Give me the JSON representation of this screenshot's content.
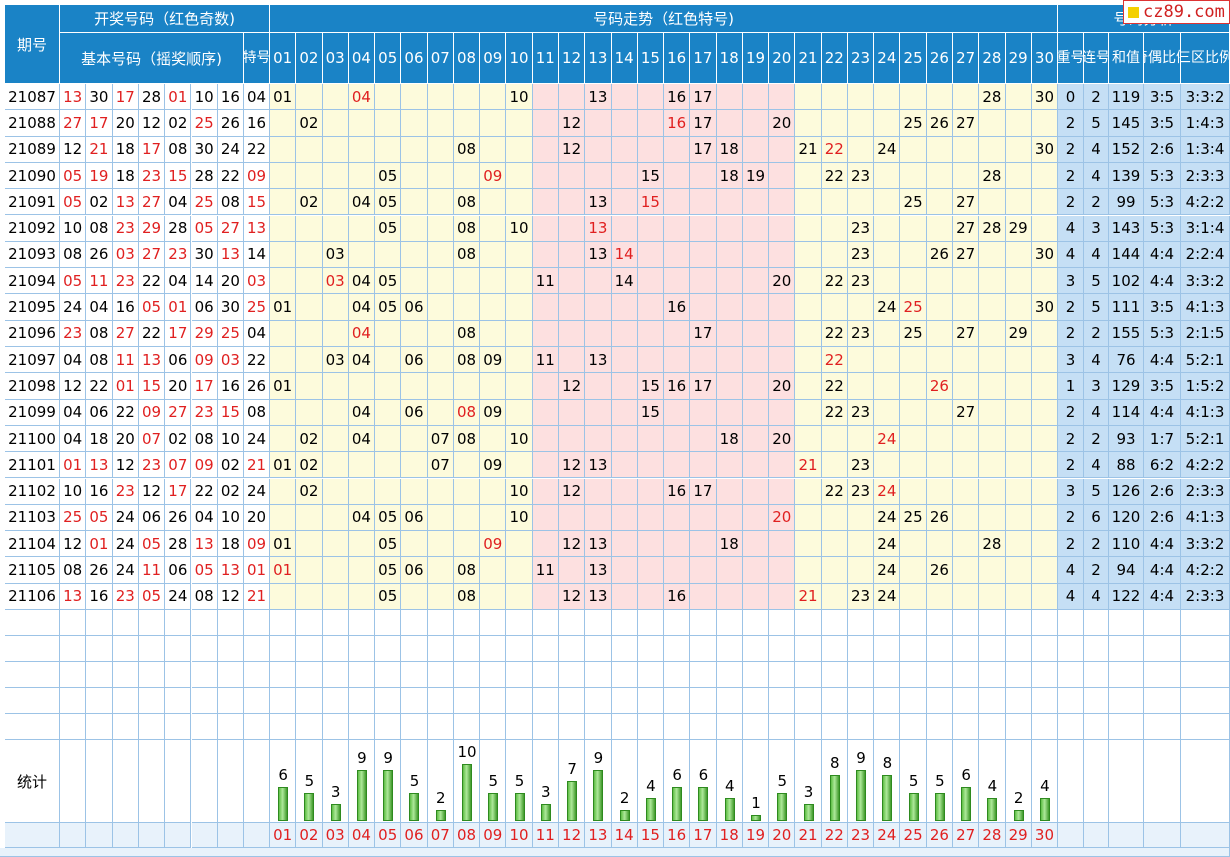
{
  "header": {
    "period_label": "期号",
    "draw_group": "开奖号码（红色奇数)",
    "basic_label": "基本号码（摇奖顺序)",
    "special_label": "特号",
    "trend_group": "号码走势（红色特号)",
    "analysis_group": "号码分析",
    "repeat_label": "重号",
    "consec_label": "连号",
    "sum_label": "和值",
    "oddeven_label": "奇偶比例",
    "zone_label": "三区比例"
  },
  "logo": {
    "text": "cz89.com"
  },
  "number_labels": [
    "01",
    "02",
    "03",
    "04",
    "05",
    "06",
    "07",
    "08",
    "09",
    "10",
    "11",
    "12",
    "13",
    "14",
    "15",
    "16",
    "17",
    "18",
    "19",
    "20",
    "21",
    "22",
    "23",
    "24",
    "25",
    "26",
    "27",
    "28",
    "29",
    "30"
  ],
  "rows": [
    {
      "period": "21087",
      "basic": [
        "13",
        "30",
        "17",
        "28",
        "01",
        "10",
        "16"
      ],
      "special": "04",
      "nums": [
        "01",
        "04",
        "10",
        "13",
        "16",
        "17",
        "28",
        "30"
      ],
      "repeat": "0",
      "consec": "2",
      "sum": "119",
      "oddeven": "3:5",
      "zones": "3:3:2"
    },
    {
      "period": "21088",
      "basic": [
        "27",
        "17",
        "20",
        "12",
        "02",
        "25",
        "26"
      ],
      "special": "16",
      "nums": [
        "02",
        "12",
        "16",
        "17",
        "20",
        "25",
        "26",
        "27"
      ],
      "repeat": "2",
      "consec": "5",
      "sum": "145",
      "oddeven": "3:5",
      "zones": "1:4:3"
    },
    {
      "period": "21089",
      "basic": [
        "12",
        "21",
        "18",
        "17",
        "08",
        "30",
        "24"
      ],
      "special": "22",
      "nums": [
        "08",
        "12",
        "17",
        "18",
        "21",
        "22",
        "24",
        "30"
      ],
      "repeat": "2",
      "consec": "4",
      "sum": "152",
      "oddeven": "2:6",
      "zones": "1:3:4"
    },
    {
      "period": "21090",
      "basic": [
        "05",
        "19",
        "18",
        "23",
        "15",
        "28",
        "22"
      ],
      "special": "09",
      "nums": [
        "05",
        "09",
        "15",
        "18",
        "19",
        "22",
        "23",
        "28"
      ],
      "repeat": "2",
      "consec": "4",
      "sum": "139",
      "oddeven": "5:3",
      "zones": "2:3:3"
    },
    {
      "period": "21091",
      "basic": [
        "05",
        "02",
        "13",
        "27",
        "04",
        "25",
        "08"
      ],
      "special": "15",
      "nums": [
        "02",
        "04",
        "05",
        "08",
        "13",
        "15",
        "25",
        "27"
      ],
      "repeat": "2",
      "consec": "2",
      "sum": "99",
      "oddeven": "5:3",
      "zones": "4:2:2"
    },
    {
      "period": "21092",
      "basic": [
        "10",
        "08",
        "23",
        "29",
        "28",
        "05",
        "27"
      ],
      "special": "13",
      "nums": [
        "05",
        "08",
        "10",
        "13",
        "23",
        "27",
        "28",
        "29"
      ],
      "repeat": "4",
      "consec": "3",
      "sum": "143",
      "oddeven": "5:3",
      "zones": "3:1:4"
    },
    {
      "period": "21093",
      "basic": [
        "08",
        "26",
        "03",
        "27",
        "23",
        "30",
        "13"
      ],
      "special": "14",
      "nums": [
        "03",
        "08",
        "13",
        "14",
        "23",
        "26",
        "27",
        "30"
      ],
      "repeat": "4",
      "consec": "4",
      "sum": "144",
      "oddeven": "4:4",
      "zones": "2:2:4"
    },
    {
      "period": "21094",
      "basic": [
        "05",
        "11",
        "23",
        "22",
        "04",
        "14",
        "20"
      ],
      "special": "03",
      "nums": [
        "03",
        "04",
        "05",
        "11",
        "14",
        "20",
        "22",
        "23"
      ],
      "repeat": "3",
      "consec": "5",
      "sum": "102",
      "oddeven": "4:4",
      "zones": "3:3:2"
    },
    {
      "period": "21095",
      "basic": [
        "24",
        "04",
        "16",
        "05",
        "01",
        "06",
        "30"
      ],
      "special": "25",
      "nums": [
        "01",
        "04",
        "05",
        "06",
        "16",
        "24",
        "25",
        "30"
      ],
      "repeat": "2",
      "consec": "5",
      "sum": "111",
      "oddeven": "3:5",
      "zones": "4:1:3"
    },
    {
      "period": "21096",
      "basic": [
        "23",
        "08",
        "27",
        "22",
        "17",
        "29",
        "25"
      ],
      "special": "04",
      "nums": [
        "04",
        "08",
        "17",
        "22",
        "23",
        "25",
        "27",
        "29"
      ],
      "repeat": "2",
      "consec": "2",
      "sum": "155",
      "oddeven": "5:3",
      "zones": "2:1:5"
    },
    {
      "period": "21097",
      "basic": [
        "04",
        "08",
        "11",
        "13",
        "06",
        "09",
        "03"
      ],
      "special": "22",
      "nums": [
        "03",
        "04",
        "06",
        "08",
        "09",
        "11",
        "13",
        "22"
      ],
      "repeat": "3",
      "consec": "4",
      "sum": "76",
      "oddeven": "4:4",
      "zones": "5:2:1"
    },
    {
      "period": "21098",
      "basic": [
        "12",
        "22",
        "01",
        "15",
        "20",
        "17",
        "16"
      ],
      "special": "26",
      "nums": [
        "01",
        "12",
        "15",
        "16",
        "17",
        "20",
        "22",
        "26"
      ],
      "repeat": "1",
      "consec": "3",
      "sum": "129",
      "oddeven": "3:5",
      "zones": "1:5:2"
    },
    {
      "period": "21099",
      "basic": [
        "04",
        "06",
        "22",
        "09",
        "27",
        "23",
        "15"
      ],
      "special": "08",
      "nums": [
        "04",
        "06",
        "08",
        "09",
        "15",
        "22",
        "23",
        "27"
      ],
      "repeat": "2",
      "consec": "4",
      "sum": "114",
      "oddeven": "4:4",
      "zones": "4:1:3"
    },
    {
      "period": "21100",
      "basic": [
        "04",
        "18",
        "20",
        "07",
        "02",
        "08",
        "10"
      ],
      "special": "24",
      "nums": [
        "02",
        "04",
        "07",
        "08",
        "10",
        "18",
        "20",
        "24"
      ],
      "repeat": "2",
      "consec": "2",
      "sum": "93",
      "oddeven": "1:7",
      "zones": "5:2:1"
    },
    {
      "period": "21101",
      "basic": [
        "01",
        "13",
        "12",
        "23",
        "07",
        "09",
        "02"
      ],
      "special": "21",
      "nums": [
        "01",
        "02",
        "07",
        "09",
        "12",
        "13",
        "21",
        "23"
      ],
      "repeat": "2",
      "consec": "4",
      "sum": "88",
      "oddeven": "6:2",
      "zones": "4:2:2"
    },
    {
      "period": "21102",
      "basic": [
        "10",
        "16",
        "23",
        "12",
        "17",
        "22",
        "02"
      ],
      "special": "24",
      "nums": [
        "02",
        "10",
        "12",
        "16",
        "17",
        "22",
        "23",
        "24"
      ],
      "repeat": "3",
      "consec": "5",
      "sum": "126",
      "oddeven": "2:6",
      "zones": "2:3:3"
    },
    {
      "period": "21103",
      "basic": [
        "25",
        "05",
        "24",
        "06",
        "26",
        "04",
        "10"
      ],
      "special": "20",
      "nums": [
        "04",
        "05",
        "06",
        "10",
        "20",
        "24",
        "25",
        "26"
      ],
      "repeat": "2",
      "consec": "6",
      "sum": "120",
      "oddeven": "2:6",
      "zones": "4:1:3"
    },
    {
      "period": "21104",
      "basic": [
        "12",
        "01",
        "24",
        "05",
        "28",
        "13",
        "18"
      ],
      "special": "09",
      "nums": [
        "01",
        "05",
        "09",
        "12",
        "13",
        "18",
        "24",
        "28"
      ],
      "repeat": "2",
      "consec": "2",
      "sum": "110",
      "oddeven": "4:4",
      "zones": "3:3:2"
    },
    {
      "period": "21105",
      "basic": [
        "08",
        "26",
        "24",
        "11",
        "06",
        "05",
        "13"
      ],
      "special": "01",
      "nums": [
        "01",
        "05",
        "06",
        "08",
        "11",
        "13",
        "24",
        "26"
      ],
      "repeat": "4",
      "consec": "2",
      "sum": "94",
      "oddeven": "4:4",
      "zones": "4:2:2"
    },
    {
      "period": "21106",
      "basic": [
        "13",
        "16",
        "23",
        "05",
        "24",
        "08",
        "12"
      ],
      "special": "21",
      "nums": [
        "05",
        "08",
        "12",
        "13",
        "16",
        "21",
        "23",
        "24"
      ],
      "repeat": "4",
      "consec": "4",
      "sum": "122",
      "oddeven": "4:4",
      "zones": "2:3:3"
    }
  ],
  "stats": {
    "label": "统计",
    "counts": [
      6,
      5,
      3,
      9,
      9,
      5,
      2,
      10,
      5,
      5,
      3,
      7,
      9,
      2,
      4,
      6,
      6,
      4,
      1,
      5,
      3,
      8,
      9,
      8,
      5,
      5,
      6,
      4,
      2,
      4
    ]
  },
  "colors": {
    "header_blue": "#1a83c6",
    "odd_red": "#e02020",
    "zone_pink": "#fde0e0",
    "zone_yellow": "#fdfbdc",
    "analysis_blue": "#c5dff5",
    "bar_green": "#5fbf45"
  }
}
